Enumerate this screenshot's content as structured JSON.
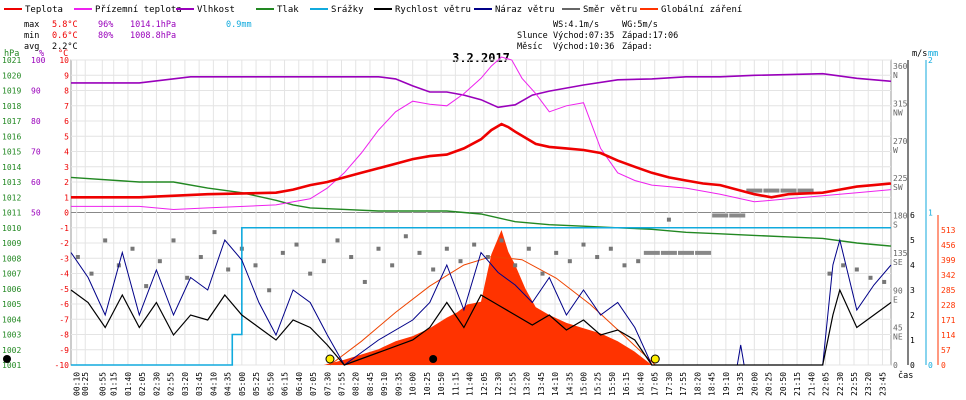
{
  "chart_data": {
    "type": "line",
    "title": "3.2.2017",
    "legend": [
      {
        "label": "Teplota",
        "color": "#ee0000"
      },
      {
        "label": "Přízemní teplota",
        "color": "#ee22ee"
      },
      {
        "label": "Vlhkost",
        "color": "#9900bb"
      },
      {
        "label": "Tlak",
        "color": "#228822"
      },
      {
        "label": "Srážky",
        "color": "#11aadd"
      },
      {
        "label": "Rychlost větru",
        "color": "#000000"
      },
      {
        "label": "Náraz větru",
        "color": "#000088"
      },
      {
        "label": "Směr větru",
        "color": "#666666"
      },
      {
        "label": "Globální záření",
        "color": "#ff3300"
      }
    ],
    "stats": {
      "max": {
        "label": "max",
        "temp": "5.8°C",
        "hum": "96%",
        "press": "1014.1hPa",
        "rain": "0.9mm"
      },
      "min": {
        "label": "min",
        "temp": "0.6°C",
        "hum": "80%",
        "press": "1008.8hPa"
      },
      "avg": {
        "label": "avg",
        "temp": "2.2°C"
      }
    },
    "info": {
      "ws": "WS:4.1m/s",
      "wg": "WG:5m/s",
      "sun_label": "Slunce",
      "sunrise": "Východ:07:35",
      "sunset": "Západ:17:06",
      "moon_label": "Měsíc",
      "moonrise": "Východ:10:36",
      "moonset": "Západ:"
    },
    "axes": {
      "hpa_unit": "hPa",
      "pct_unit": "%",
      "temp_unit": "°C",
      "ms_unit": "m/s",
      "mm_unit": "mm",
      "x_unit": "čas",
      "pressure_ticks": [
        "1021",
        "1020",
        "1019",
        "1018",
        "1017",
        "1016",
        "1015",
        "1014",
        "1013",
        "1012",
        "1011",
        "1010",
        "1009",
        "1008",
        "1007",
        "1006",
        "1005",
        "1004",
        "1003",
        "1002",
        "1001"
      ],
      "humidity_ticks": [
        "100",
        "90",
        "80",
        "70",
        "60",
        "50"
      ],
      "temp_ticks": [
        "10",
        "9",
        "8",
        "7",
        "6",
        "5",
        "4",
        "3",
        "2",
        "1",
        "0",
        "-1",
        "-2",
        "-3",
        "-4",
        "-5",
        "-6",
        "-7",
        "-8",
        "-9",
        "-10"
      ],
      "dir_ticks": [
        {
          "deg": "360",
          "name": "N"
        },
        {
          "deg": "315",
          "name": "NW"
        },
        {
          "deg": "270",
          "name": "W"
        },
        {
          "deg": "225",
          "name": "SW"
        },
        {
          "deg": "180",
          "name": "S"
        },
        {
          "deg": "135",
          "name": "SE"
        },
        {
          "deg": "90",
          "name": "E"
        },
        {
          "deg": "45",
          "name": "NE"
        },
        {
          "deg": "0",
          "name": ""
        }
      ],
      "ms_ticks": [
        "6",
        "5",
        "4",
        "3",
        "2",
        "1",
        "0"
      ],
      "mm_ticks": [
        "2",
        "1",
        "0"
      ],
      "rad_ticks": [
        "513",
        "456",
        "399",
        "342",
        "285",
        "228",
        "171",
        "114",
        "57",
        "0"
      ],
      "time_ticks": [
        "00:10",
        "00:25",
        "00:55",
        "01:15",
        "01:40",
        "02:05",
        "02:30",
        "02:55",
        "03:20",
        "03:45",
        "04:10",
        "04:35",
        "05:00",
        "05:25",
        "05:50",
        "06:15",
        "06:40",
        "07:05",
        "07:30",
        "07:55",
        "08:20",
        "08:45",
        "09:10",
        "09:35",
        "10:00",
        "10:25",
        "10:50",
        "11:15",
        "11:40",
        "12:05",
        "12:30",
        "12:55",
        "13:20",
        "13:45",
        "14:10",
        "14:35",
        "15:00",
        "15:25",
        "15:50",
        "16:15",
        "16:40",
        "17:05",
        "17:30",
        "17:55",
        "18:20",
        "18:45",
        "19:10",
        "19:35",
        "20:00",
        "20:25",
        "20:50",
        "21:15",
        "21:40",
        "22:05",
        "22:30",
        "22:55",
        "23:20",
        "23:45"
      ]
    },
    "x_range_hours": [
      0,
      24
    ],
    "series": [
      {
        "name": "Teplota",
        "unit": "°C",
        "x": [
          0,
          2,
          4,
          6,
          6.5,
          7,
          7.5,
          8,
          8.5,
          9,
          9.5,
          10,
          10.5,
          11,
          11.5,
          12,
          12.3,
          12.6,
          12.8,
          13,
          13.3,
          13.6,
          14,
          14.5,
          15,
          15.5,
          16,
          16.5,
          17,
          17.5,
          18,
          18.5,
          19,
          20,
          20.5,
          21,
          22,
          22.5,
          23,
          23.5,
          24
        ],
        "values": [
          1.0,
          1.0,
          1.2,
          1.3,
          1.5,
          1.8,
          2.0,
          2.3,
          2.6,
          2.9,
          3.2,
          3.5,
          3.7,
          3.8,
          4.2,
          4.8,
          5.4,
          5.8,
          5.6,
          5.3,
          4.9,
          4.5,
          4.3,
          4.2,
          4.1,
          3.9,
          3.4,
          3.0,
          2.6,
          2.3,
          2.1,
          1.9,
          1.8,
          1.2,
          1.0,
          1.2,
          1.3,
          1.5,
          1.7,
          1.8,
          1.9
        ]
      },
      {
        "name": "Přízemní teplota",
        "unit": "°C",
        "x": [
          0,
          2,
          3,
          4,
          6,
          7,
          7.5,
          8,
          8.5,
          9,
          9.5,
          10,
          10.5,
          11,
          11.5,
          12,
          12.3,
          12.6,
          12.9,
          13.2,
          13.6,
          14,
          14.5,
          15,
          15.5,
          16,
          16.5,
          17,
          18,
          19,
          20,
          21,
          22,
          23,
          24
        ],
        "values": [
          0.4,
          0.4,
          0.2,
          0.3,
          0.5,
          0.9,
          1.6,
          2.6,
          3.9,
          5.4,
          6.6,
          7.3,
          7.1,
          7.0,
          7.8,
          8.8,
          9.6,
          10.2,
          10.0,
          8.8,
          7.8,
          6.6,
          7.0,
          7.2,
          4.2,
          2.6,
          2.1,
          1.8,
          1.6,
          1.2,
          0.7,
          0.9,
          1.1,
          1.3,
          1.5
        ]
      },
      {
        "name": "Vlhkost",
        "unit": "%",
        "x": [
          0,
          2,
          3.5,
          4,
          6,
          7,
          8,
          9,
          9.5,
          10,
          10.5,
          11,
          11.5,
          12,
          12.5,
          13,
          13.5,
          14,
          15,
          16,
          17,
          18,
          19,
          20,
          21,
          22,
          23,
          24
        ],
        "values": [
          92.5,
          92.5,
          94.5,
          94.5,
          94.5,
          94.5,
          94.5,
          94.5,
          93.8,
          91.5,
          89.5,
          89.5,
          88.5,
          87,
          84.5,
          85.3,
          88.5,
          89.8,
          91.8,
          93.5,
          93.8,
          94.5,
          94.5,
          95,
          95.2,
          95.5,
          94,
          93
        ]
      },
      {
        "name": "Tlak",
        "unit": "hPa",
        "x": [
          0,
          2,
          3,
          4,
          5,
          6,
          6.5,
          7,
          8,
          9,
          10,
          11,
          12,
          13,
          14,
          15,
          16,
          17,
          18,
          19,
          20,
          21,
          22,
          23,
          24
        ],
        "values": [
          1013.3,
          1013.0,
          1013.0,
          1012.6,
          1012.3,
          1011.8,
          1011.5,
          1011.3,
          1011.2,
          1011.1,
          1011.1,
          1011.1,
          1010.9,
          1010.4,
          1010.2,
          1010.1,
          1010.0,
          1009.9,
          1009.7,
          1009.6,
          1009.5,
          1009.4,
          1009.3,
          1009.0,
          1008.8
        ]
      },
      {
        "name": "Srážky",
        "unit": "mm",
        "x": [
          0,
          4.7,
          4.72,
          4.9,
          5.0,
          5.6,
          24
        ],
        "values": [
          0,
          0,
          0.2,
          0.2,
          0.9,
          0.9,
          0.9
        ]
      },
      {
        "name": "Rychlost větru",
        "unit": "m/s",
        "x": [
          0,
          0.5,
          1,
          1.5,
          2,
          2.5,
          3,
          3.5,
          4,
          4.5,
          5,
          5.5,
          6,
          6.5,
          7,
          7.5,
          8,
          9,
          10,
          10.5,
          11,
          11.5,
          12,
          12.5,
          13,
          13.5,
          14,
          14.5,
          15,
          15.5,
          16,
          16.5,
          17,
          20,
          21,
          22,
          22.3,
          22.5,
          23,
          23.5,
          24
        ],
        "values": [
          3,
          2.5,
          1.5,
          2.8,
          1.5,
          2.5,
          1.2,
          2,
          1.8,
          2.8,
          2,
          1.5,
          1,
          1.8,
          1.5,
          0.8,
          0,
          0.5,
          1,
          1.5,
          2.5,
          1.5,
          2.8,
          2.4,
          2,
          1.6,
          2,
          1.4,
          1.8,
          1.2,
          1.4,
          1,
          0,
          0,
          0,
          0,
          2,
          3,
          1.5,
          2,
          2.5
        ]
      },
      {
        "name": "Náraz větru",
        "unit": "m/s",
        "x": [
          0,
          0.5,
          1,
          1.5,
          2,
          2.5,
          3,
          3.5,
          4,
          4.5,
          5,
          5.5,
          6,
          6.5,
          7,
          7.5,
          8,
          9,
          10,
          10.5,
          11,
          11.5,
          12,
          12.5,
          13,
          13.5,
          14,
          14.5,
          15,
          15.5,
          16,
          16.5,
          17,
          19.5,
          19.6,
          19.7,
          22,
          22.3,
          22.5,
          23,
          23.5,
          24
        ],
        "values": [
          4.5,
          3.5,
          2,
          4.5,
          2,
          3.8,
          2,
          3.5,
          3,
          5,
          4.2,
          2.5,
          1.2,
          3,
          2.5,
          1.2,
          0,
          1,
          1.8,
          2.5,
          4,
          2.2,
          4.5,
          3.7,
          3.2,
          2.5,
          3.5,
          2,
          3,
          2,
          2.5,
          1.5,
          0,
          0,
          0.8,
          0,
          0,
          4,
          5,
          2.2,
          3.2,
          4
        ]
      },
      {
        "name": "Globální záření",
        "unit": "W/m2",
        "x": [
          7.4,
          8,
          8.5,
          9,
          9.5,
          10,
          10.5,
          11,
          11.3,
          11.6,
          12,
          12.3,
          12.6,
          12.8,
          13,
          13.3,
          13.6,
          14,
          14.5,
          15,
          15.5,
          16,
          16.5,
          17
        ],
        "values": [
          0,
          20,
          40,
          60,
          90,
          110,
          140,
          180,
          200,
          230,
          240,
          420,
          513,
          430,
          380,
          290,
          220,
          190,
          160,
          140,
          120,
          90,
          50,
          0
        ]
      }
    ],
    "wind_direction_points": {
      "unit": "°",
      "x": [
        0.2,
        0.6,
        1.0,
        1.4,
        1.8,
        2.2,
        2.6,
        3.0,
        3.4,
        3.8,
        4.2,
        4.6,
        5.0,
        5.4,
        5.8,
        6.2,
        6.6,
        7.0,
        7.4,
        7.8,
        8.2,
        8.6,
        9.0,
        9.4,
        9.8,
        10.2,
        10.6,
        11.0,
        11.4,
        11.8,
        12.2,
        12.6,
        13.0,
        13.4,
        13.8,
        14.2,
        14.6,
        15.0,
        15.4,
        15.8,
        16.2,
        16.6,
        17.5,
        22.2,
        22.6,
        23.0,
        23.4,
        23.8
      ],
      "values": [
        130,
        110,
        150,
        120,
        140,
        95,
        125,
        150,
        105,
        130,
        160,
        115,
        140,
        120,
        90,
        135,
        145,
        110,
        125,
        150,
        130,
        100,
        140,
        120,
        155,
        135,
        115,
        140,
        125,
        145,
        130,
        150,
        120,
        140,
        110,
        135,
        125,
        145,
        130,
        140,
        120,
        125,
        175,
        110,
        120,
        115,
        105,
        100
      ]
    },
    "wind_direction_bars": {
      "unit": "°",
      "x": [
        17.0,
        17.5,
        18.0,
        18.5,
        19.0,
        19.5,
        20.0,
        20.5,
        21.0,
        21.5
      ],
      "values": [
        135,
        135,
        135,
        135,
        180,
        180,
        210,
        210,
        210,
        210
      ]
    },
    "sun_radiation_curve": {
      "name": "clear-sky",
      "x": [
        7.58,
        8.5,
        9.5,
        10.5,
        11.5,
        12.3,
        13.2,
        14.2,
        15.2,
        16.2,
        17.1
      ],
      "values": [
        0,
        90,
        200,
        300,
        380,
        412,
        400,
        330,
        230,
        110,
        0
      ]
    },
    "markers": {
      "sunrise_h": 7.58,
      "sunset_h": 17.1,
      "moonrise_h": 10.6
    }
  }
}
